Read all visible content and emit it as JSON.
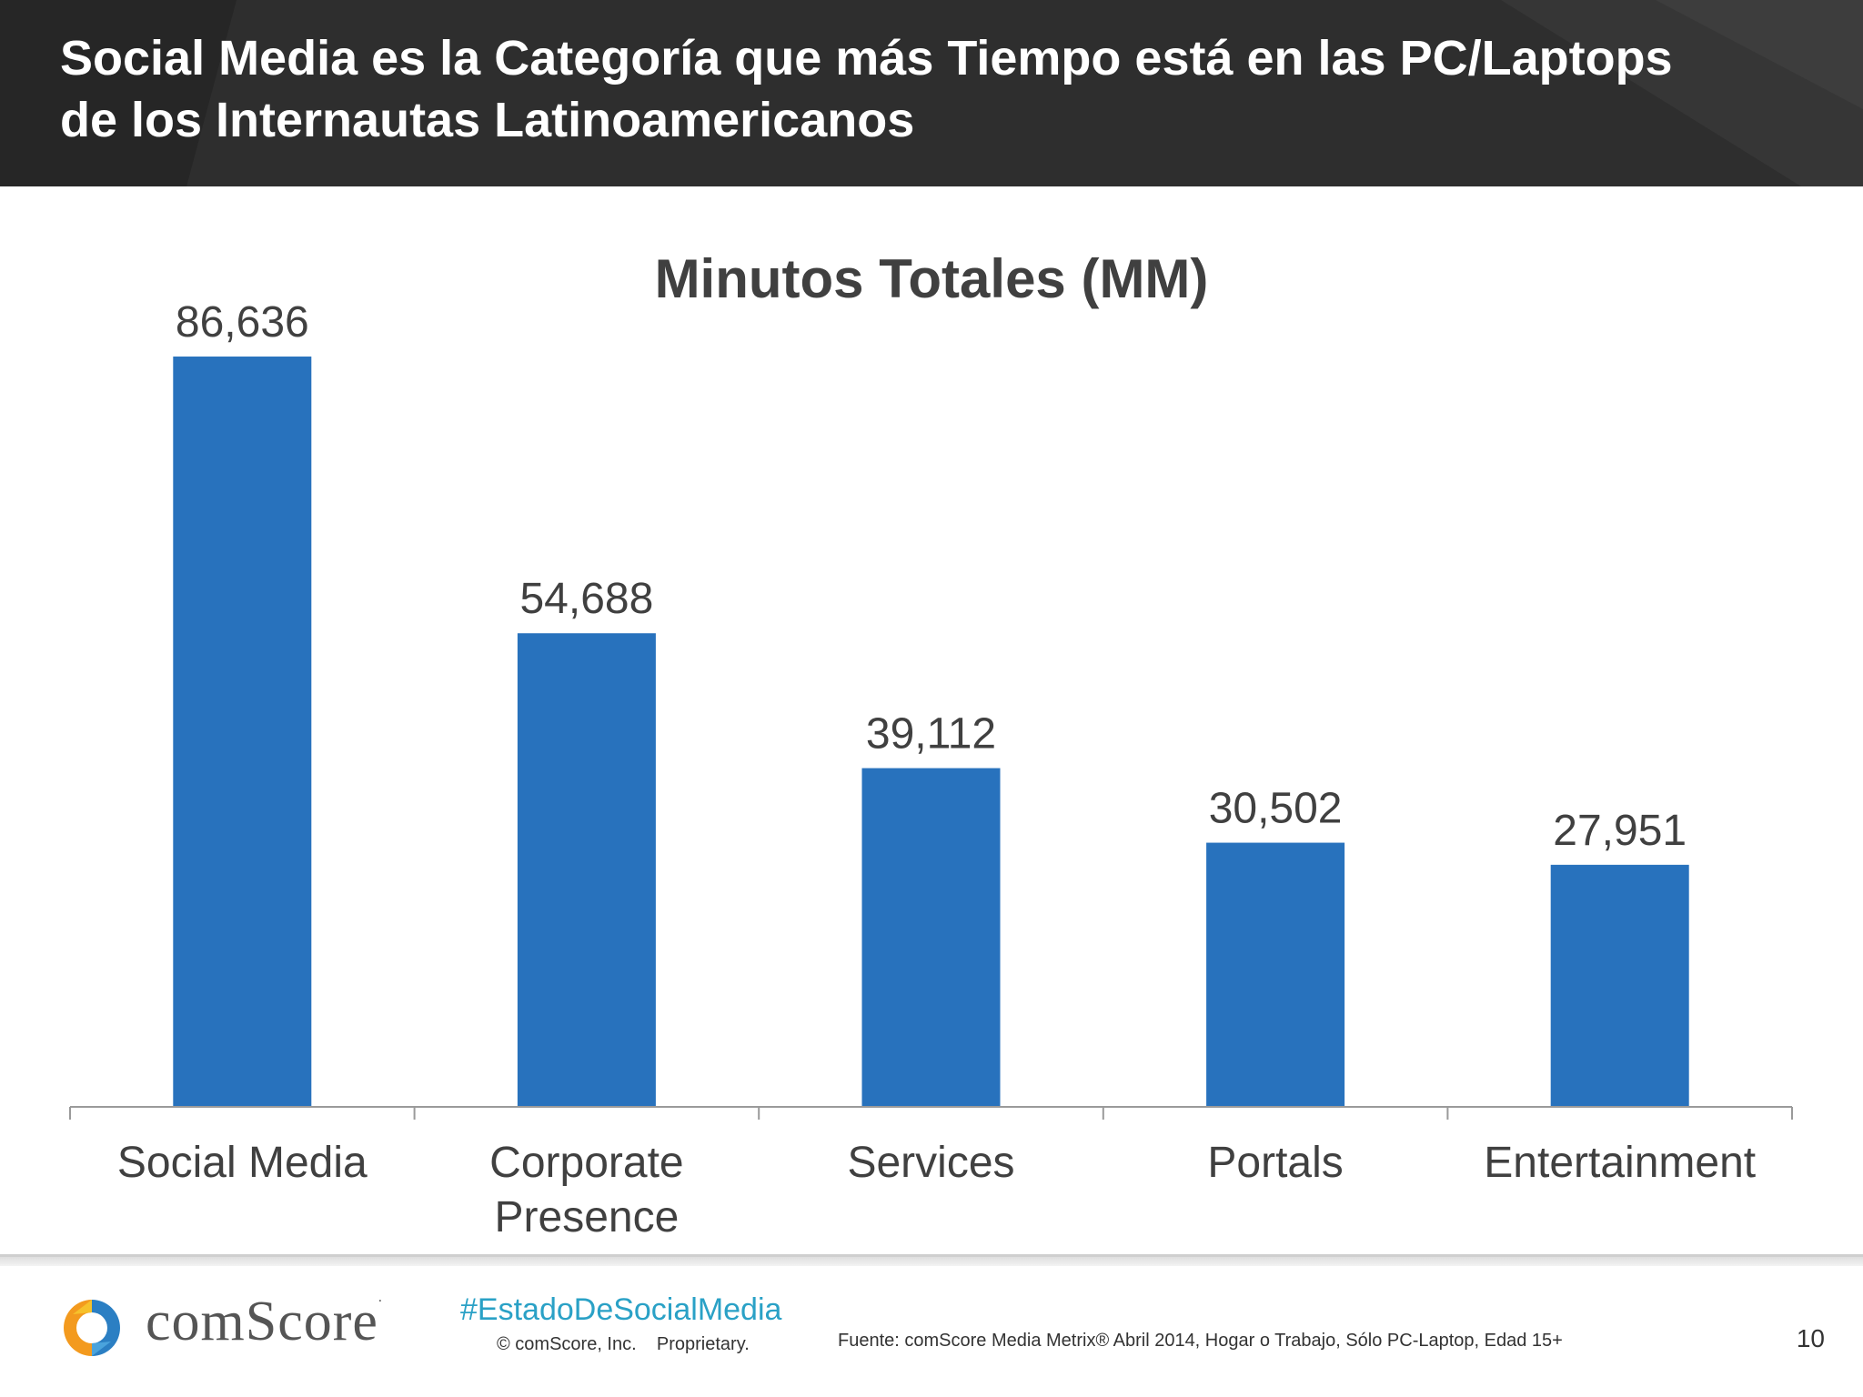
{
  "header": {
    "title_line1": "Social Media es la Categoría que más Tiempo está en las PC/Laptops",
    "title_line2": "de los Internautas Latinoamericanos"
  },
  "chart_data": {
    "type": "bar",
    "title": "Minutos Totales (MM)",
    "categories": [
      [
        "Social Media"
      ],
      [
        "Corporate",
        "Presence"
      ],
      [
        "Services"
      ],
      [
        "Portals"
      ],
      [
        "Entertainment"
      ]
    ],
    "values": [
      86636,
      54688,
      39112,
      30502,
      27951
    ],
    "value_labels": [
      "86,636",
      "54,688",
      "39,112",
      "30,502",
      "27,951"
    ],
    "xlabel": "",
    "ylabel": "",
    "ylim": [
      0,
      90000
    ],
    "grid": false,
    "legend": "none",
    "bar_color": "#2872bd"
  },
  "footer": {
    "brand": "comScore",
    "hashtag": "#EstadoDeSocialMedia",
    "copyright": "© comScore, Inc.    Proprietary.",
    "source": "Fuente: comScore Media Metrix® Abril 2014, Hogar o Trabajo, Sólo PC-Laptop, Edad 15+",
    "page_number": "10"
  },
  "colors": {
    "header_bg": "#2b2b2b",
    "hashtag": "#2aa1c6",
    "logo_orange": "#f39a1e",
    "logo_blue": "#2b7fc3"
  }
}
